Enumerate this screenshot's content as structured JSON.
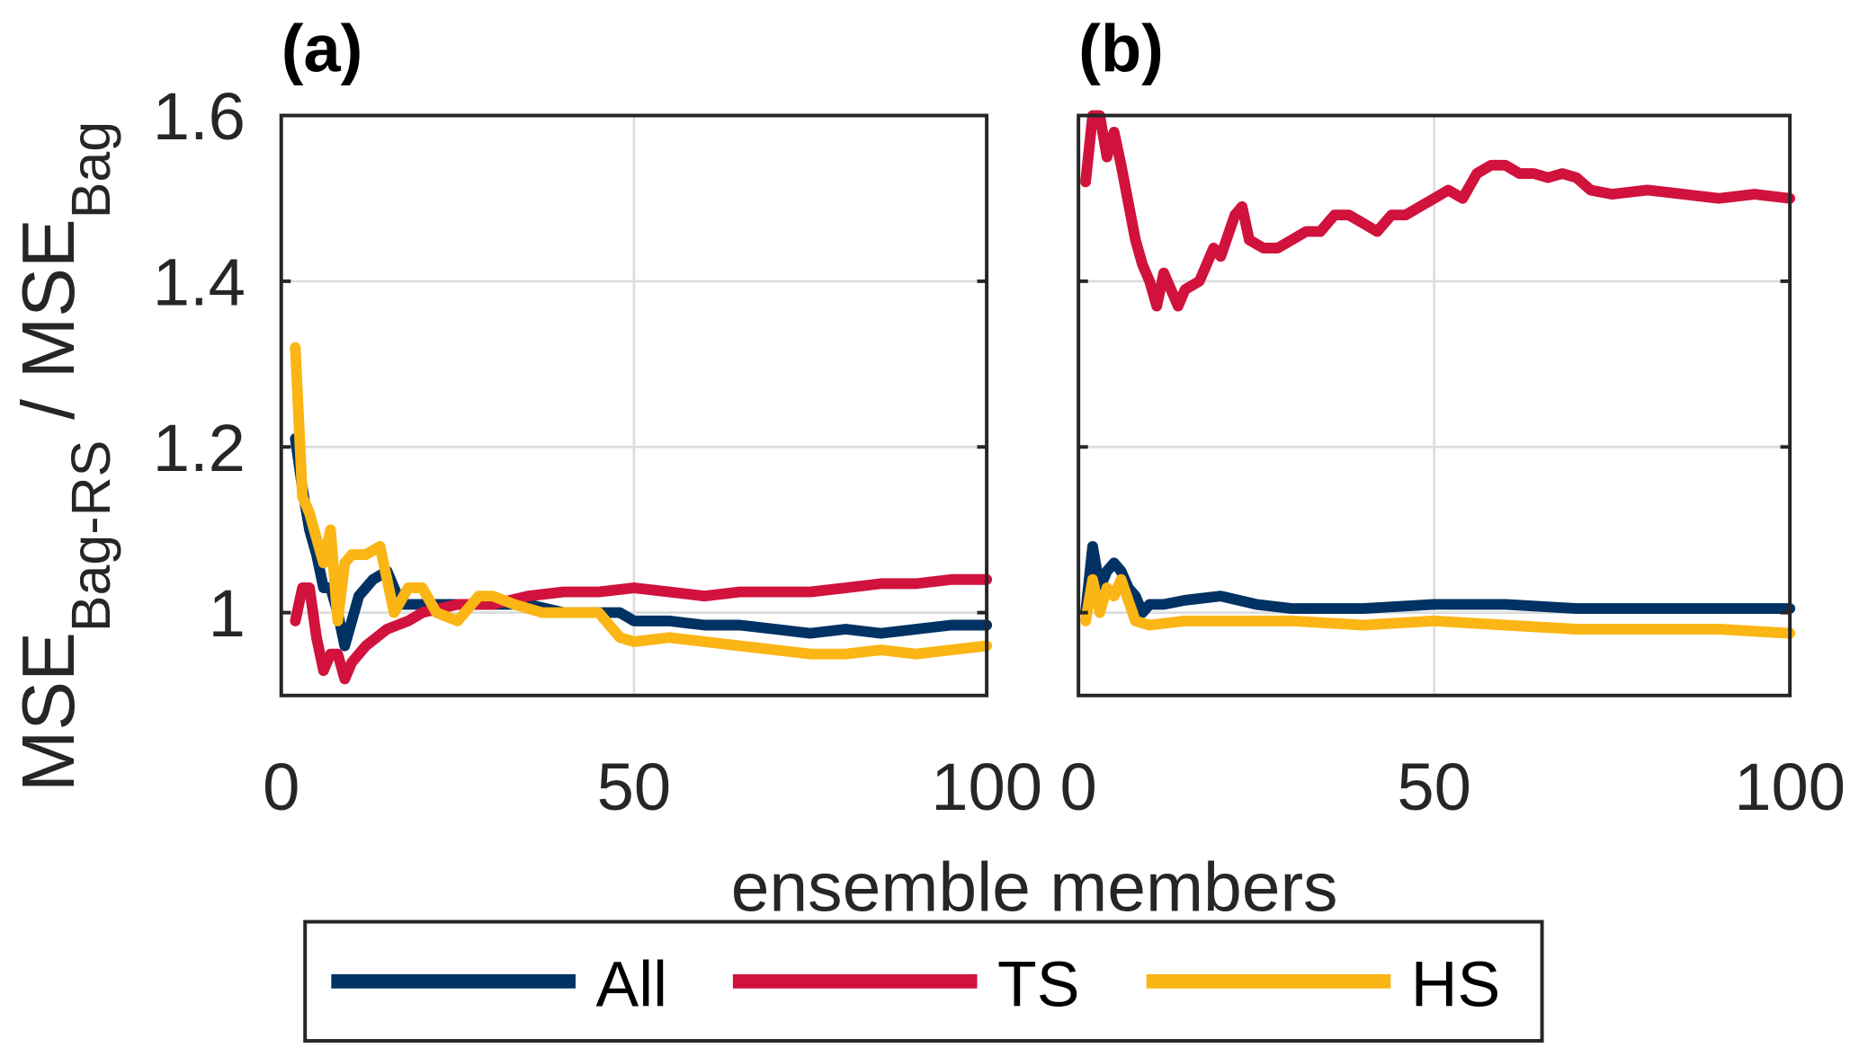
{
  "chart_data": [
    {
      "type": "line",
      "panel_label": "(a)",
      "xlim": [
        0,
        100
      ],
      "ylim": [
        0.9,
        1.6
      ],
      "xticks": [
        0,
        50,
        100
      ],
      "xtick_labels": [
        "0",
        "50",
        "100"
      ],
      "yticks": [
        1,
        1.2,
        1.4,
        1.6
      ],
      "ytick_labels": [
        "1",
        "1.2",
        "1.4",
        "1.6"
      ],
      "grid": true,
      "series": [
        {
          "name": "All",
          "color": "#003263",
          "x": [
            2,
            3,
            4,
            5,
            6,
            7,
            8,
            9,
            10,
            11,
            12,
            13,
            15,
            17,
            20,
            25,
            30,
            35,
            40,
            45,
            48,
            50,
            55,
            60,
            65,
            70,
            75,
            80,
            85,
            90,
            95,
            100
          ],
          "y": [
            1.21,
            1.15,
            1.1,
            1.07,
            1.03,
            1.03,
            1.0,
            0.96,
            0.99,
            1.02,
            1.03,
            1.04,
            1.05,
            1.01,
            1.01,
            1.01,
            1.01,
            1.01,
            1.0,
            1.0,
            1.0,
            0.99,
            0.99,
            0.985,
            0.985,
            0.98,
            0.975,
            0.98,
            0.975,
            0.98,
            0.985,
            0.985
          ]
        },
        {
          "name": "TS",
          "color": "#d0123d",
          "x": [
            2,
            3,
            4,
            5,
            6,
            7,
            8,
            9,
            10,
            12,
            15,
            18,
            20,
            25,
            30,
            35,
            40,
            45,
            50,
            55,
            60,
            65,
            70,
            75,
            80,
            85,
            90,
            95,
            100
          ],
          "y": [
            0.99,
            1.03,
            1.03,
            0.97,
            0.93,
            0.95,
            0.95,
            0.92,
            0.94,
            0.96,
            0.98,
            0.99,
            1.0,
            1.01,
            1.01,
            1.02,
            1.025,
            1.025,
            1.03,
            1.025,
            1.02,
            1.025,
            1.025,
            1.025,
            1.03,
            1.035,
            1.035,
            1.04,
            1.04
          ]
        },
        {
          "name": "HS",
          "color": "#fbb514",
          "x": [
            2,
            3,
            4,
            5,
            6,
            7,
            8,
            9,
            10,
            12,
            14,
            16,
            18,
            20,
            22,
            25,
            28,
            30,
            33,
            37,
            40,
            45,
            48,
            50,
            55,
            60,
            65,
            70,
            75,
            80,
            85,
            90,
            95,
            100
          ],
          "y": [
            1.32,
            1.14,
            1.12,
            1.09,
            1.06,
            1.1,
            0.99,
            1.06,
            1.07,
            1.07,
            1.08,
            1.0,
            1.03,
            1.03,
            1.0,
            0.99,
            1.02,
            1.02,
            1.01,
            1.0,
            1.0,
            1.0,
            0.97,
            0.965,
            0.97,
            0.965,
            0.96,
            0.955,
            0.95,
            0.95,
            0.955,
            0.95,
            0.955,
            0.96
          ]
        }
      ]
    },
    {
      "type": "line",
      "panel_label": "(b)",
      "xlim": [
        0,
        100
      ],
      "ylim": [
        0.9,
        1.6
      ],
      "xticks": [
        0,
        50,
        100
      ],
      "xtick_labels": [
        "0",
        "50",
        "100"
      ],
      "grid": true,
      "series": [
        {
          "name": "All",
          "color": "#003263",
          "x": [
            1,
            2,
            3,
            4,
            5,
            6,
            7,
            8,
            9,
            10,
            12,
            15,
            20,
            25,
            30,
            40,
            50,
            60,
            70,
            80,
            90,
            100
          ],
          "y": [
            1.0,
            1.08,
            1.03,
            1.05,
            1.06,
            1.05,
            1.03,
            1.02,
            1.0,
            1.01,
            1.01,
            1.015,
            1.02,
            1.01,
            1.005,
            1.005,
            1.01,
            1.01,
            1.005,
            1.005,
            1.005,
            1.005
          ]
        },
        {
          "name": "TS",
          "color": "#d0123d",
          "x": [
            1,
            2,
            3,
            4,
            5,
            6,
            8,
            9,
            10,
            11,
            12,
            14,
            15,
            17,
            19,
            20,
            22,
            23,
            24,
            26,
            28,
            30,
            32,
            34,
            36,
            38,
            40,
            42,
            44,
            46,
            48,
            50,
            52,
            54,
            56,
            58,
            60,
            62,
            64,
            66,
            68,
            70,
            72,
            75,
            80,
            85,
            90,
            95,
            100
          ],
          "y": [
            1.52,
            1.6,
            1.6,
            1.55,
            1.58,
            1.54,
            1.45,
            1.42,
            1.4,
            1.37,
            1.41,
            1.37,
            1.39,
            1.4,
            1.44,
            1.43,
            1.48,
            1.49,
            1.45,
            1.44,
            1.44,
            1.45,
            1.46,
            1.46,
            1.48,
            1.48,
            1.47,
            1.46,
            1.48,
            1.48,
            1.49,
            1.5,
            1.51,
            1.5,
            1.53,
            1.54,
            1.54,
            1.53,
            1.53,
            1.525,
            1.53,
            1.525,
            1.51,
            1.505,
            1.51,
            1.505,
            1.5,
            1.505,
            1.5
          ]
        },
        {
          "name": "HS",
          "color": "#fbb514",
          "x": [
            1,
            2,
            3,
            4,
            5,
            6,
            8,
            10,
            15,
            20,
            30,
            40,
            50,
            60,
            70,
            80,
            90,
            100
          ],
          "y": [
            0.99,
            1.04,
            1.0,
            1.03,
            1.02,
            1.04,
            0.99,
            0.985,
            0.99,
            0.99,
            0.99,
            0.985,
            0.99,
            0.985,
            0.98,
            0.98,
            0.98,
            0.975
          ]
        }
      ]
    }
  ],
  "labels": {
    "xlabel": "ensemble members",
    "ylabel_main1": "MSE",
    "ylabel_sub1": "Bag-RS",
    "ylabel_sep": " / MSE",
    "ylabel_sub2": "Bag"
  },
  "legend": {
    "placement": "bottom",
    "entries": [
      "All",
      "TS",
      "HS"
    ]
  }
}
